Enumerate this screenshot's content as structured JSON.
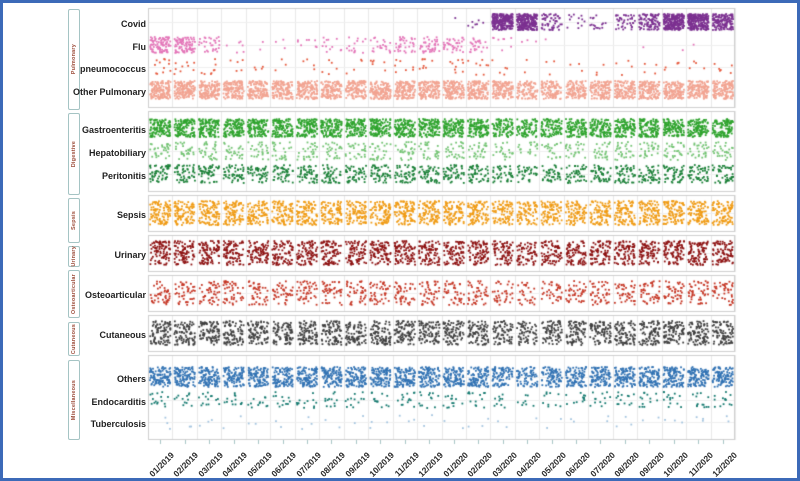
{
  "chart_data": {
    "type": "scatter",
    "subtype": "jittered-strip-by-month",
    "title": "",
    "xlabel": "",
    "ylabel": "",
    "grid": true,
    "legend": "none",
    "x_labels": [
      "01/2019",
      "02/2019",
      "03/2019",
      "04/2019",
      "05/2019",
      "06/2019",
      "07/2019",
      "08/2019",
      "09/2019",
      "10/2019",
      "11/2019",
      "12/2019",
      "01/2020",
      "02/2020",
      "03/2020",
      "04/2020",
      "05/2020",
      "06/2020",
      "07/2020",
      "08/2020",
      "09/2020",
      "10/2020",
      "11/2020",
      "12/2020"
    ],
    "value_note": "counts = approximate number of plotted case-points per month, estimated from dot density",
    "groups": [
      {
        "label": "Pulmonary",
        "rows": [
          {
            "name": "Covid",
            "color": "#7c3191",
            "counts": [
              0,
              0,
              0,
              0,
              0,
              0,
              0,
              0,
              0,
              0,
              0,
              0,
              1,
              7,
              240,
              240,
              55,
              12,
              16,
              40,
              95,
              240,
              240,
              150
            ]
          },
          {
            "name": "Flu",
            "color": "#e476b9",
            "counts": [
              90,
              90,
              30,
              6,
              2,
              3,
              8,
              12,
              15,
              22,
              35,
              40,
              38,
              26,
              8,
              3,
              1,
              0,
              0,
              0,
              1,
              1,
              1,
              0
            ]
          },
          {
            "name": "pneumococcus",
            "color": "#e65a3e",
            "counts": [
              12,
              9,
              8,
              5,
              4,
              3,
              4,
              5,
              4,
              6,
              7,
              8,
              9,
              8,
              5,
              2,
              3,
              3,
              3,
              4,
              4,
              5,
              4,
              6
            ]
          },
          {
            "name": "Other Pulmonary",
            "color": "#f2a492",
            "counts": [
              150,
              150,
              140,
              135,
              130,
              128,
              132,
              130,
              130,
              138,
              140,
              142,
              142,
              140,
              128,
              95,
              105,
              115,
              122,
              130,
              132,
              140,
              140,
              138
            ]
          }
        ]
      },
      {
        "label": "Digestive",
        "rows": [
          {
            "name": "Gastroenteritis",
            "color": "#2fa42e",
            "counts": [
              120,
              118,
              120,
              115,
              114,
              114,
              118,
              114,
              114,
              118,
              120,
              116,
              118,
              115,
              92,
              82,
              96,
              105,
              110,
              115,
              116,
              120,
              120,
              115
            ]
          },
          {
            "name": "Hepatobiliary",
            "color": "#74c474",
            "counts": [
              30,
              28,
              30,
              28,
              26,
              26,
              28,
              26,
              26,
              28,
              30,
              28,
              28,
              28,
              22,
              18,
              22,
              25,
              26,
              28,
              28,
              30,
              28,
              28
            ]
          },
          {
            "name": "Peritonitis",
            "color": "#1b8138",
            "counts": [
              54,
              50,
              54,
              50,
              48,
              48,
              50,
              48,
              48,
              50,
              52,
              50,
              50,
              50,
              40,
              35,
              42,
              46,
              48,
              50,
              50,
              52,
              50,
              50
            ]
          }
        ]
      },
      {
        "label": "Sepsis",
        "rows": [
          {
            "name": "Sepsis",
            "color": "#f09c16",
            "counts": [
              100,
              96,
              100,
              95,
              94,
              92,
              96,
              94,
              92,
              95,
              100,
              96,
              96,
              95,
              85,
              76,
              86,
              90,
              92,
              95,
              96,
              100,
              100,
              96
            ]
          }
        ]
      },
      {
        "label": "Urinary",
        "rows": [
          {
            "name": "Urinary",
            "color": "#8e1212",
            "counts": [
              90,
              86,
              90,
              86,
              85,
              82,
              86,
              85,
              82,
              86,
              90,
              86,
              86,
              85,
              76,
              66,
              76,
              80,
              82,
              86,
              86,
              90,
              90,
              86
            ]
          }
        ]
      },
      {
        "label": "Osteoarticular",
        "rows": [
          {
            "name": "Osteoarticular",
            "color": "#c63726",
            "counts": [
              46,
              43,
              46,
              45,
              43,
              41,
              45,
              43,
              41,
              45,
              46,
              43,
              43,
              43,
              35,
              28,
              35,
              39,
              41,
              43,
              43,
              46,
              46,
              43
            ]
          }
        ]
      },
      {
        "label": "Cutaneous",
        "rows": [
          {
            "name": "Cutaneous",
            "color": "#404040",
            "counts": [
              90,
              86,
              90,
              88,
              86,
              85,
              88,
              86,
              85,
              88,
              90,
              86,
              86,
              85,
              72,
              62,
              74,
              80,
              83,
              86,
              86,
              90,
              90,
              86
            ]
          }
        ]
      },
      {
        "label": "Miscellaneous",
        "rows": [
          {
            "name": "Others",
            "color": "#3273b4",
            "counts": [
              110,
              106,
              110,
              108,
              106,
              105,
              108,
              106,
              105,
              108,
              110,
              106,
              106,
              105,
              86,
              72,
              86,
              96,
              100,
              105,
              106,
              110,
              110,
              106
            ]
          },
          {
            "name": "Endocarditis",
            "color": "#157a70",
            "counts": [
              15,
              12,
              14,
              13,
              12,
              12,
              13,
              12,
              12,
              13,
              14,
              13,
              13,
              13,
              10,
              8,
              10,
              12,
              12,
              13,
              13,
              14,
              13,
              13
            ]
          },
          {
            "name": "Tuberculosis",
            "color": "#a4c5e0",
            "counts": [
              3,
              2,
              3,
              2,
              2,
              2,
              3,
              2,
              2,
              3,
              3,
              2,
              2,
              3,
              2,
              1,
              2,
              2,
              2,
              3,
              2,
              3,
              3,
              2
            ]
          }
        ]
      }
    ],
    "style": {
      "frame_border_color": "#3c6ab8",
      "panel_border_color": "#cfcfcf",
      "gridline_color": "#e9e9e9",
      "sidebar_border_color": "#a5c4c4",
      "sidebar_text_color": "#9b4a38",
      "axis_text_color": "#2b2b2b"
    }
  }
}
